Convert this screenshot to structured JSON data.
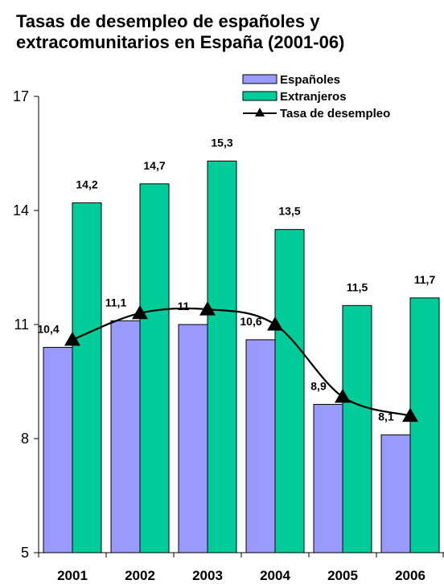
{
  "chart_data": {
    "type": "bar",
    "title": "Tasas de desempleo de españoles y extracomunitarios en España (2001-06)",
    "categories": [
      "2001",
      "2002",
      "2003",
      "2004",
      "2005",
      "2006"
    ],
    "ylim": [
      5,
      17
    ],
    "yticks": [
      5,
      8,
      11,
      14,
      17
    ],
    "grid": false,
    "legend_position": "top-right",
    "series": [
      {
        "name": "Españoles",
        "kind": "bar",
        "color": "#9999ff",
        "values": [
          10.4,
          11.1,
          11,
          10.6,
          8.9,
          8.1
        ],
        "labels": [
          "10,4",
          "11,1",
          "11",
          "10,6",
          "8,9",
          "8,1"
        ]
      },
      {
        "name": "Extranjeros",
        "kind": "bar",
        "color": "#00cc99",
        "values": [
          14.2,
          14.7,
          15.3,
          13.5,
          11.5,
          11.7
        ],
        "labels": [
          "14,2",
          "14,7",
          "15,3",
          "13,5",
          "11,5",
          "11,7"
        ]
      },
      {
        "name": "Tasa de desempleo",
        "kind": "line",
        "color": "#000000",
        "marker": "triangle",
        "values": [
          10.6,
          11.3,
          11.4,
          11.0,
          9.1,
          8.6
        ]
      }
    ]
  }
}
